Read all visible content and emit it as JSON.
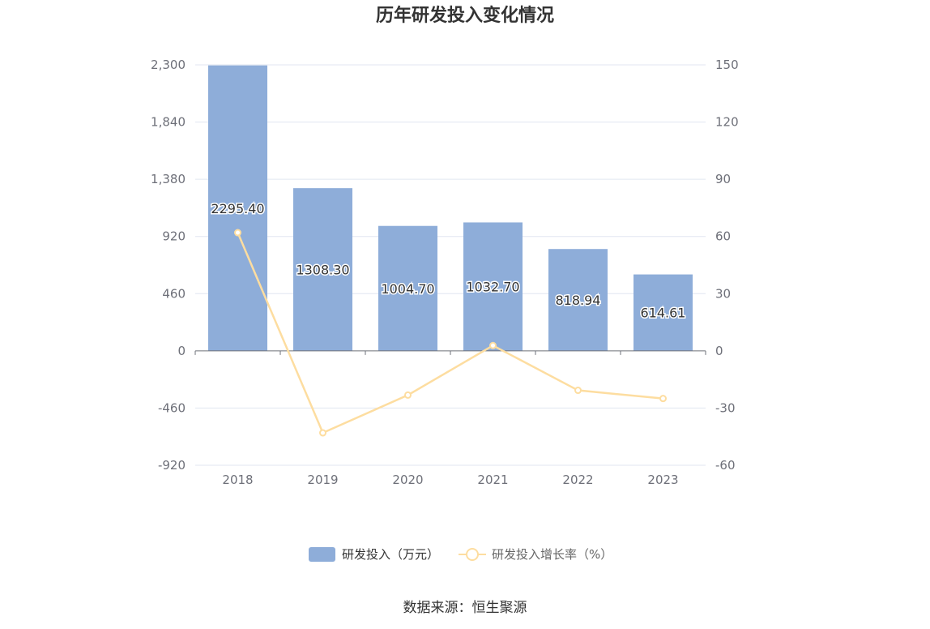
{
  "colors": {
    "bar": "#8eadd9",
    "line": "#fddda0",
    "grid": "#e0e6f1",
    "axis": "#6e7079"
  },
  "chart_data": {
    "type": "bar",
    "title": "历年研发投入变化情况",
    "categories": [
      "2018",
      "2019",
      "2020",
      "2021",
      "2022",
      "2023"
    ],
    "series": [
      {
        "name": "研发投入（万元）",
        "type": "bar",
        "axis": "left",
        "values": [
          2295.4,
          1308.3,
          1004.7,
          1032.7,
          818.94,
          614.61
        ],
        "labels": [
          "2295.40",
          "1308.30",
          "1004.70",
          "1032.70",
          "818.94",
          "614.61"
        ]
      },
      {
        "name": "研发投入增长率（%）",
        "type": "line",
        "axis": "right",
        "values": [
          62.0,
          -43.0,
          -23.2,
          2.8,
          -20.7,
          -25.0
        ]
      }
    ],
    "y_left": {
      "min": -920,
      "max": 2300,
      "ticks": [
        "2,300",
        "1,840",
        "1,380",
        "920",
        "460",
        "0",
        "-460",
        "-920"
      ]
    },
    "y_right": {
      "min": -60,
      "max": 150,
      "ticks": [
        "150",
        "120",
        "90",
        "60",
        "30",
        "0",
        "-30",
        "-60"
      ]
    },
    "grid": true,
    "legend_position": "bottom"
  },
  "source_text": "数据来源：恒生聚源"
}
